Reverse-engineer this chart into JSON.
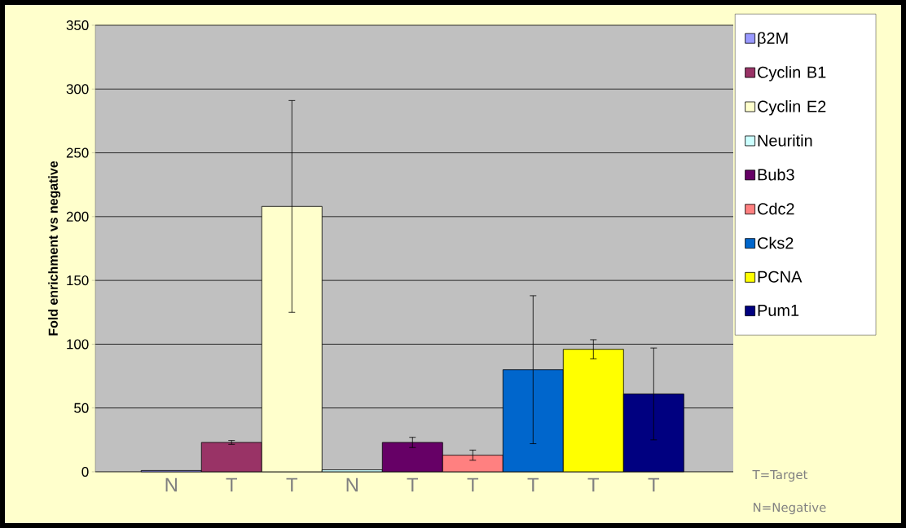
{
  "chart_data": {
    "type": "bar",
    "ylabel": "Fold enrichment  vs negative",
    "categories": [
      "N",
      "T",
      "T",
      "N",
      "T",
      "T",
      "T",
      "T",
      "T"
    ],
    "series": [
      {
        "name": "β2M",
        "color": "#9999ff",
        "values": [
          1,
          null,
          null,
          null,
          null,
          null,
          null,
          null,
          null
        ],
        "errors": [
          null,
          null,
          null,
          null,
          null,
          null,
          null,
          null,
          null
        ]
      },
      {
        "name": "Cyclin B1",
        "color": "#993366",
        "values": [
          null,
          23,
          null,
          null,
          null,
          null,
          null,
          null,
          null
        ],
        "errors": [
          null,
          1.5,
          null,
          null,
          null,
          null,
          null,
          null,
          null
        ]
      },
      {
        "name": "Cyclin E2",
        "color": "#ffffcc",
        "values": [
          null,
          null,
          208,
          null,
          null,
          null,
          null,
          null,
          null
        ],
        "errors": [
          null,
          null,
          83,
          null,
          null,
          null,
          null,
          null,
          null
        ]
      },
      {
        "name": "Neuritin",
        "color": "#ccffff",
        "values": [
          null,
          null,
          null,
          1.5,
          null,
          null,
          null,
          null,
          null
        ],
        "errors": [
          null,
          null,
          null,
          null,
          null,
          null,
          null,
          null,
          null
        ]
      },
      {
        "name": "Bub3",
        "color": "#660066",
        "values": [
          null,
          null,
          null,
          null,
          23,
          null,
          null,
          null,
          null
        ],
        "errors": [
          null,
          null,
          null,
          null,
          4,
          null,
          null,
          null,
          null
        ]
      },
      {
        "name": "Cdc2",
        "color": "#ff8080",
        "values": [
          null,
          null,
          null,
          null,
          null,
          13,
          null,
          null,
          null
        ],
        "errors": [
          null,
          null,
          null,
          null,
          null,
          4,
          null,
          null,
          null
        ]
      },
      {
        "name": "Cks2",
        "color": "#0066cc",
        "values": [
          null,
          null,
          null,
          null,
          null,
          null,
          80,
          null,
          null
        ],
        "errors": [
          null,
          null,
          null,
          null,
          null,
          null,
          58,
          null,
          null
        ]
      },
      {
        "name": "PCNA",
        "color": "#ffff00",
        "values": [
          null,
          null,
          null,
          null,
          null,
          null,
          null,
          96,
          null
        ],
        "errors": [
          null,
          null,
          null,
          null,
          null,
          null,
          null,
          7.5,
          null
        ]
      },
      {
        "name": "Pum1",
        "color": "#000080",
        "values": [
          null,
          null,
          null,
          null,
          null,
          null,
          null,
          null,
          61
        ],
        "errors": [
          null,
          null,
          null,
          null,
          null,
          null,
          null,
          null,
          36
        ]
      }
    ],
    "ylim": [
      0,
      350
    ],
    "yticks": [
      0,
      50,
      100,
      150,
      200,
      250,
      300,
      350
    ],
    "grid": "y",
    "legend": "right",
    "annotations": [
      "T=Target",
      "N=Negative"
    ]
  }
}
